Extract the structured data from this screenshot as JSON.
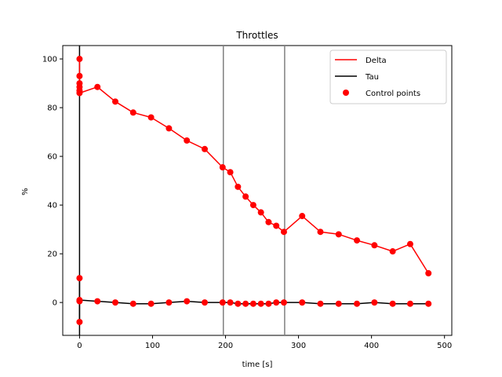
{
  "chart_data": {
    "type": "line",
    "title": "Throttles",
    "xlabel": "time [s]",
    "ylabel": "%",
    "xlim": [
      -23,
      510
    ],
    "ylim": [
      -13.5,
      105.5
    ],
    "x_ticks": [
      0,
      100,
      200,
      300,
      400,
      500
    ],
    "y_ticks": [
      0,
      20,
      40,
      60,
      80,
      100
    ],
    "vertical_lines": [
      0,
      197,
      281
    ],
    "legend_position": "top-right",
    "series": [
      {
        "name": "Delta",
        "type": "line",
        "color": "#ff0000",
        "x": [
          0,
          0,
          0,
          0,
          0,
          0,
          24.5,
          49,
          73.5,
          98,
          122.5,
          147,
          171.5,
          196,
          206.5,
          217,
          227.5,
          238,
          248.5,
          259,
          269.5,
          280,
          305,
          330,
          355,
          380,
          404,
          429,
          453,
          478
        ],
        "y": [
          100,
          93,
          90,
          88.5,
          87,
          86,
          88.5,
          82.5,
          78,
          76,
          71.5,
          66.5,
          63,
          55.5,
          53.5,
          47.5,
          43.5,
          40,
          37,
          33,
          31.5,
          29,
          35.5,
          29,
          28,
          25.5,
          23.5,
          21,
          24,
          12
        ]
      },
      {
        "name": "Tau",
        "type": "line",
        "color": "#000000",
        "x": [
          0,
          0,
          0,
          0,
          0,
          24.5,
          49,
          73.5,
          98,
          122.5,
          147,
          171.5,
          196,
          206.5,
          217,
          227.5,
          238,
          248.5,
          259,
          269.5,
          280,
          305,
          330,
          355,
          380,
          404,
          429,
          453,
          478
        ],
        "y": [
          10,
          0.5,
          0,
          -8,
          1,
          0.5,
          0,
          -0.5,
          -0.5,
          0,
          0.5,
          0,
          0,
          0,
          -0.5,
          -0.5,
          -0.5,
          -0.5,
          -0.5,
          0,
          0,
          0,
          -0.5,
          -0.5,
          -0.5,
          0,
          -0.5,
          -0.5,
          -0.5
        ]
      },
      {
        "name": "Control points",
        "type": "scatter",
        "color": "#ff0000",
        "x": [
          0,
          0,
          0,
          0,
          0,
          0,
          24.5,
          49,
          73.5,
          98,
          122.5,
          147,
          171.5,
          196,
          206.5,
          217,
          227.5,
          238,
          248.5,
          259,
          269.5,
          280,
          305,
          330,
          355,
          380,
          404,
          429,
          453,
          478,
          0,
          0,
          0,
          0,
          24.5,
          49,
          73.5,
          98,
          122.5,
          147,
          171.5,
          196,
          206.5,
          217,
          227.5,
          238,
          248.5,
          259,
          269.5,
          280,
          305,
          330,
          355,
          380,
          404,
          429,
          453,
          478
        ],
        "y": [
          100,
          93,
          90,
          88.5,
          87,
          86,
          88.5,
          82.5,
          78,
          76,
          71.5,
          66.5,
          63,
          55.5,
          53.5,
          47.5,
          43.5,
          40,
          37,
          33,
          31.5,
          29,
          35.5,
          29,
          28,
          25.5,
          23.5,
          21,
          24,
          12,
          10,
          0.5,
          -8,
          1,
          0.5,
          0,
          -0.5,
          -0.5,
          0,
          0.5,
          0,
          0,
          0,
          -0.5,
          -0.5,
          -0.5,
          -0.5,
          -0.5,
          0,
          0,
          0,
          -0.5,
          -0.5,
          -0.5,
          0,
          -0.5,
          -0.5,
          -0.5
        ]
      }
    ],
    "legend": [
      "Delta",
      "Tau",
      "Control points"
    ]
  }
}
